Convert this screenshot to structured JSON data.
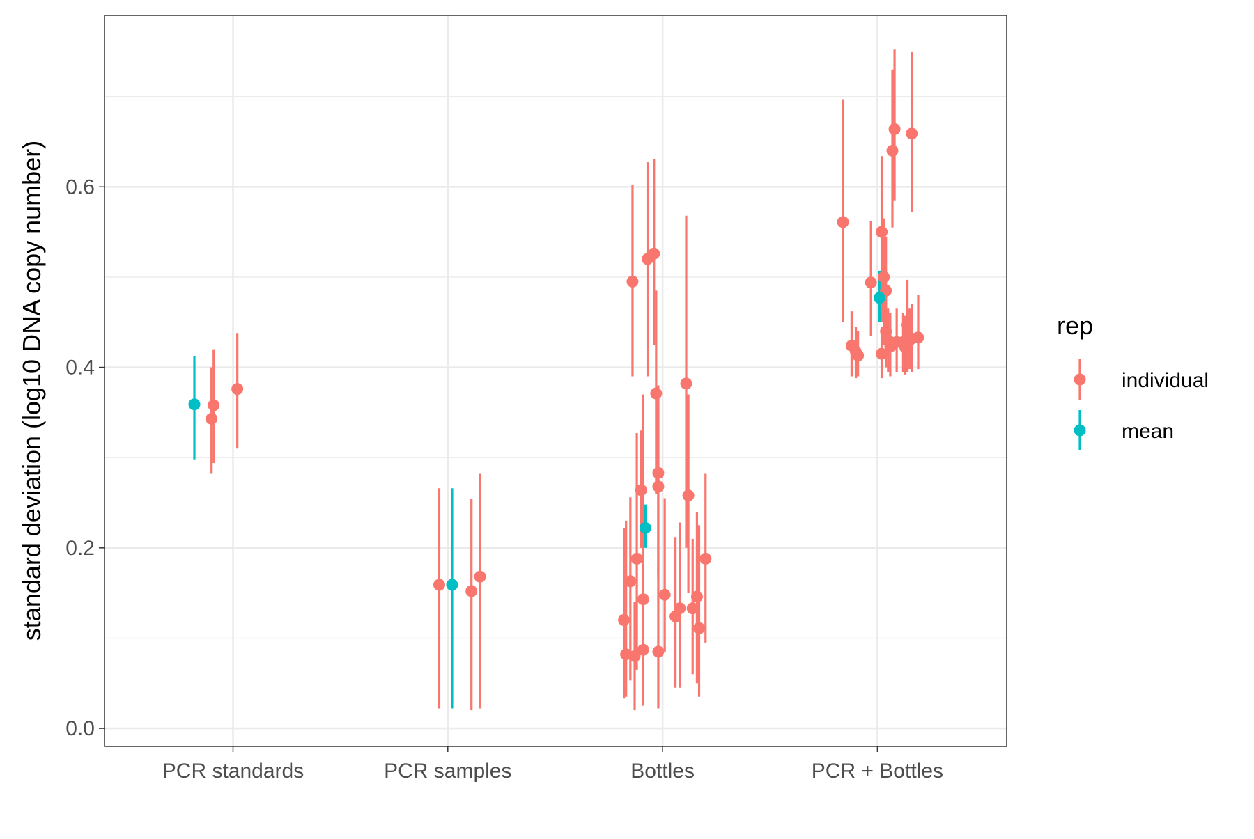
{
  "chart_data": {
    "type": "scatter",
    "subtype": "pointrange",
    "title": "",
    "xlabel": "",
    "ylabel": "standard deviation (log10 DNA copy number)",
    "categories": [
      "PCR standards",
      "PCR samples",
      "Bottles",
      "PCR + Bottles"
    ],
    "ylim": [
      -0.02,
      0.79
    ],
    "y_ticks": [
      0.0,
      0.2,
      0.4,
      0.6
    ],
    "y_tick_labels": [
      "0.0",
      "0.2",
      "0.4",
      "0.6"
    ],
    "grid": true,
    "legend": {
      "title": "rep",
      "placement": "right",
      "entries": [
        {
          "label": "individual",
          "color": "#F8766D"
        },
        {
          "label": "mean",
          "color": "#00BFC4"
        }
      ]
    },
    "series": [
      {
        "name": "individual",
        "color": "#F8766D",
        "points": [
          {
            "category": "PCR standards",
            "jitter": -0.1,
            "y": 0.343,
            "ymin": 0.282,
            "ymax": 0.4
          },
          {
            "category": "PCR standards",
            "jitter": -0.09,
            "y": 0.358,
            "ymin": 0.294,
            "ymax": 0.42
          },
          {
            "category": "PCR standards",
            "jitter": 0.02,
            "y": 0.376,
            "ymin": 0.31,
            "ymax": 0.438
          },
          {
            "category": "PCR samples",
            "jitter": -0.04,
            "y": 0.159,
            "ymin": 0.022,
            "ymax": 0.266
          },
          {
            "category": "PCR samples",
            "jitter": 0.11,
            "y": 0.152,
            "ymin": 0.02,
            "ymax": 0.254
          },
          {
            "category": "PCR samples",
            "jitter": 0.15,
            "y": 0.168,
            "ymin": 0.022,
            "ymax": 0.282
          },
          {
            "category": "Bottles",
            "jitter": -0.18,
            "y": 0.12,
            "ymin": 0.033,
            "ymax": 0.222
          },
          {
            "category": "Bottles",
            "jitter": -0.17,
            "y": 0.082,
            "ymin": 0.035,
            "ymax": 0.23
          },
          {
            "category": "Bottles",
            "jitter": -0.15,
            "y": 0.163,
            "ymin": 0.053,
            "ymax": 0.256
          },
          {
            "category": "Bottles",
            "jitter": -0.14,
            "y": 0.495,
            "ymin": 0.39,
            "ymax": 0.602
          },
          {
            "category": "Bottles",
            "jitter": -0.13,
            "y": 0.08,
            "ymin": 0.02,
            "ymax": 0.14
          },
          {
            "category": "Bottles",
            "jitter": -0.12,
            "y": 0.188,
            "ymin": 0.065,
            "ymax": 0.327
          },
          {
            "category": "Bottles",
            "jitter": -0.1,
            "y": 0.264,
            "ymin": 0.2,
            "ymax": 0.33
          },
          {
            "category": "Bottles",
            "jitter": -0.09,
            "y": 0.143,
            "ymin": 0.075,
            "ymax": 0.37
          },
          {
            "category": "Bottles",
            "jitter": -0.09,
            "y": 0.087,
            "ymin": 0.025,
            "ymax": 0.2
          },
          {
            "category": "Bottles",
            "jitter": -0.07,
            "y": 0.52,
            "ymin": 0.39,
            "ymax": 0.628
          },
          {
            "category": "Bottles",
            "jitter": -0.04,
            "y": 0.526,
            "ymin": 0.425,
            "ymax": 0.631
          },
          {
            "category": "Bottles",
            "jitter": -0.03,
            "y": 0.371,
            "ymin": 0.26,
            "ymax": 0.485
          },
          {
            "category": "Bottles",
            "jitter": -0.02,
            "y": 0.283,
            "ymin": 0.175,
            "ymax": 0.38
          },
          {
            "category": "Bottles",
            "jitter": -0.02,
            "y": 0.268,
            "ymin": 0.165,
            "ymax": 0.36
          },
          {
            "category": "Bottles",
            "jitter": -0.02,
            "y": 0.085,
            "ymin": 0.022,
            "ymax": 0.177
          },
          {
            "category": "Bottles",
            "jitter": 0.01,
            "y": 0.148,
            "ymin": 0.085,
            "ymax": 0.255
          },
          {
            "category": "Bottles",
            "jitter": 0.06,
            "y": 0.124,
            "ymin": 0.045,
            "ymax": 0.212
          },
          {
            "category": "Bottles",
            "jitter": 0.08,
            "y": 0.133,
            "ymin": 0.045,
            "ymax": 0.228
          },
          {
            "category": "Bottles",
            "jitter": 0.11,
            "y": 0.382,
            "ymin": 0.2,
            "ymax": 0.568
          },
          {
            "category": "Bottles",
            "jitter": 0.12,
            "y": 0.258,
            "ymin": 0.15,
            "ymax": 0.37
          },
          {
            "category": "Bottles",
            "jitter": 0.14,
            "y": 0.133,
            "ymin": 0.06,
            "ymax": 0.21
          },
          {
            "category": "Bottles",
            "jitter": 0.16,
            "y": 0.146,
            "ymin": 0.05,
            "ymax": 0.24
          },
          {
            "category": "Bottles",
            "jitter": 0.17,
            "y": 0.111,
            "ymin": 0.035,
            "ymax": 0.225
          },
          {
            "category": "Bottles",
            "jitter": 0.2,
            "y": 0.188,
            "ymin": 0.095,
            "ymax": 0.282
          },
          {
            "category": "PCR + Bottles",
            "jitter": -0.16,
            "y": 0.561,
            "ymin": 0.45,
            "ymax": 0.697
          },
          {
            "category": "PCR + Bottles",
            "jitter": -0.12,
            "y": 0.424,
            "ymin": 0.39,
            "ymax": 0.462
          },
          {
            "category": "PCR + Bottles",
            "jitter": -0.1,
            "y": 0.417,
            "ymin": 0.388,
            "ymax": 0.445
          },
          {
            "category": "PCR + Bottles",
            "jitter": -0.09,
            "y": 0.413,
            "ymin": 0.39,
            "ymax": 0.44
          },
          {
            "category": "PCR + Bottles",
            "jitter": -0.03,
            "y": 0.494,
            "ymin": 0.435,
            "ymax": 0.562
          },
          {
            "category": "PCR + Bottles",
            "jitter": 0.02,
            "y": 0.415,
            "ymin": 0.388,
            "ymax": 0.445
          },
          {
            "category": "PCR + Bottles",
            "jitter": 0.02,
            "y": 0.55,
            "ymin": 0.45,
            "ymax": 0.634
          },
          {
            "category": "PCR + Bottles",
            "jitter": 0.03,
            "y": 0.5,
            "ymin": 0.425,
            "ymax": 0.565
          },
          {
            "category": "PCR + Bottles",
            "jitter": 0.04,
            "y": 0.485,
            "ymin": 0.42,
            "ymax": 0.545
          },
          {
            "category": "PCR + Bottles",
            "jitter": 0.04,
            "y": 0.44,
            "ymin": 0.4,
            "ymax": 0.48
          },
          {
            "category": "PCR + Bottles",
            "jitter": 0.05,
            "y": 0.43,
            "ymin": 0.395,
            "ymax": 0.465
          },
          {
            "category": "PCR + Bottles",
            "jitter": 0.06,
            "y": 0.423,
            "ymin": 0.39,
            "ymax": 0.46
          },
          {
            "category": "PCR + Bottles",
            "jitter": 0.07,
            "y": 0.64,
            "ymin": 0.555,
            "ymax": 0.73
          },
          {
            "category": "PCR + Bottles",
            "jitter": 0.08,
            "y": 0.664,
            "ymin": 0.585,
            "ymax": 0.752
          },
          {
            "category": "PCR + Bottles",
            "jitter": 0.09,
            "y": 0.428,
            "ymin": 0.395,
            "ymax": 0.465
          },
          {
            "category": "PCR + Bottles",
            "jitter": 0.12,
            "y": 0.428,
            "ymin": 0.395,
            "ymax": 0.46
          },
          {
            "category": "PCR + Bottles",
            "jitter": 0.13,
            "y": 0.422,
            "ymin": 0.392,
            "ymax": 0.457
          },
          {
            "category": "PCR + Bottles",
            "jitter": 0.14,
            "y": 0.447,
            "ymin": 0.395,
            "ymax": 0.497
          },
          {
            "category": "PCR + Bottles",
            "jitter": 0.15,
            "y": 0.43,
            "ymin": 0.398,
            "ymax": 0.465
          },
          {
            "category": "PCR + Bottles",
            "jitter": 0.16,
            "y": 0.432,
            "ymin": 0.395,
            "ymax": 0.47
          },
          {
            "category": "PCR + Bottles",
            "jitter": 0.16,
            "y": 0.659,
            "ymin": 0.572,
            "ymax": 0.75
          },
          {
            "category": "PCR + Bottles",
            "jitter": 0.19,
            "y": 0.433,
            "ymin": 0.398,
            "ymax": 0.48
          }
        ]
      },
      {
        "name": "mean",
        "color": "#00BFC4",
        "points": [
          {
            "category": "PCR standards",
            "jitter": -0.18,
            "y": 0.359,
            "ymin": 0.298,
            "ymax": 0.412
          },
          {
            "category": "PCR samples",
            "jitter": 0.02,
            "y": 0.159,
            "ymin": 0.022,
            "ymax": 0.266
          },
          {
            "category": "Bottles",
            "jitter": -0.08,
            "y": 0.222,
            "ymin": 0.2,
            "ymax": 0.248
          },
          {
            "category": "PCR + Bottles",
            "jitter": 0.01,
            "y": 0.477,
            "ymin": 0.45,
            "ymax": 0.507
          }
        ]
      }
    ]
  }
}
